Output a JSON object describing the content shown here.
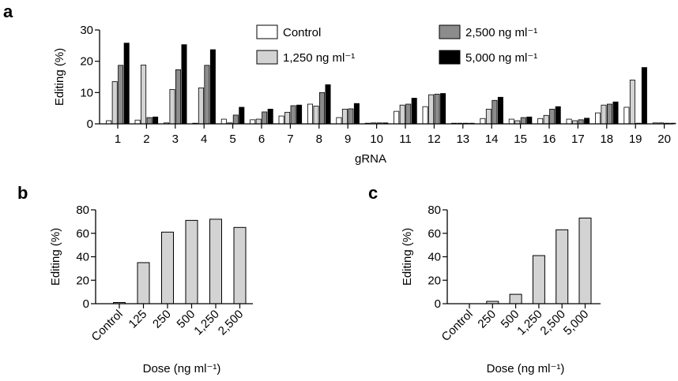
{
  "colors": {
    "control": "#ffffff",
    "d1250": "#d3d3d3",
    "d2500": "#8c8c8c",
    "d5000": "#000000",
    "bar_gray": "#d3d3d3"
  },
  "chart_data": [
    {
      "panel": "a",
      "type": "bar",
      "categories": [
        "1",
        "2",
        "3",
        "4",
        "5",
        "6",
        "7",
        "8",
        "9",
        "10",
        "11",
        "12",
        "13",
        "14",
        "15",
        "16",
        "17",
        "18",
        "19",
        "20"
      ],
      "series": [
        {
          "name": "Control",
          "color_key": "control",
          "values": [
            1,
            1.2,
            0.3,
            0.2,
            1.5,
            1.3,
            2.5,
            6.3,
            2,
            0.2,
            4,
            5.5,
            0.2,
            1.7,
            1.5,
            1.7,
            1.5,
            3.5,
            5.3,
            0.3
          ]
        },
        {
          "name": "1,250 ng ml⁻¹",
          "color_key": "d1250",
          "values": [
            13.5,
            18.8,
            11,
            11.5,
            0.3,
            1.5,
            3.7,
            5.7,
            4.7,
            0.3,
            6,
            9.3,
            0.2,
            4.7,
            1,
            2.7,
            1,
            6,
            14,
            0.3
          ]
        },
        {
          "name": "2,500 ng ml⁻¹",
          "color_key": "d2500",
          "values": [
            18.7,
            2,
            17.3,
            18.7,
            2.8,
            3.8,
            5.8,
            10,
            4.8,
            0.3,
            6.3,
            9.5,
            0.2,
            7.5,
            2,
            4.7,
            1.3,
            6.3,
            0,
            0.2
          ]
        },
        {
          "name": "5,000 ng ml⁻¹",
          "color_key": "d5000",
          "values": [
            25.8,
            2.2,
            25.3,
            23.7,
            5.3,
            4.7,
            6,
            12.5,
            6.5,
            0.3,
            8.2,
            9.7,
            0.2,
            8.5,
            2.2,
            5.5,
            1.8,
            7,
            18,
            0.2
          ]
        }
      ],
      "xlabel": "gRNA",
      "ylabel": "Editing (%)",
      "ylim": [
        0,
        30
      ],
      "yticks": [
        "0",
        "10",
        "20",
        "30"
      ],
      "legend": "top-right",
      "grid": false
    },
    {
      "panel": "b",
      "type": "bar",
      "categories": [
        "Control",
        "125",
        "250",
        "500",
        "1,250",
        "2,500"
      ],
      "values": [
        1,
        35,
        61,
        71,
        72,
        65
      ],
      "xlabel": "Dose (ng ml⁻¹)",
      "ylabel": "Editing (%)",
      "ylim": [
        0,
        80
      ],
      "yticks": [
        "0",
        "20",
        "40",
        "60",
        "80"
      ],
      "grid": false
    },
    {
      "panel": "c",
      "type": "bar",
      "categories": [
        "Control",
        "250",
        "500",
        "1,250",
        "2,500",
        "5,000"
      ],
      "values": [
        0,
        2,
        8,
        41,
        63,
        73
      ],
      "xlabel": "Dose (ng ml⁻¹)",
      "ylabel": "Editing (%)",
      "ylim": [
        0,
        80
      ],
      "yticks": [
        "0",
        "20",
        "40",
        "60",
        "80"
      ],
      "grid": false
    }
  ]
}
